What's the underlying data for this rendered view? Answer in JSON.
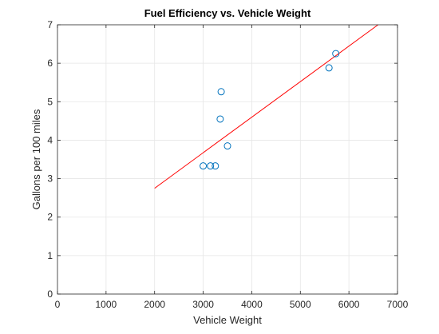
{
  "chart_data": {
    "type": "scatter",
    "title": "Fuel Efficiency vs. Vehicle Weight",
    "xlabel": "Vehicle Weight",
    "ylabel": "Gallons per 100 miles",
    "xlim": [
      0,
      7000
    ],
    "ylim": [
      0,
      7
    ],
    "grid": true,
    "x_ticks": [
      0,
      1000,
      2000,
      3000,
      4000,
      5000,
      6000,
      7000
    ],
    "x_tick_labels": [
      "0",
      "1000",
      "2000",
      "3000",
      "4000",
      "5000",
      "6000",
      "7000"
    ],
    "y_ticks": [
      0,
      1,
      2,
      3,
      4,
      5,
      6,
      7
    ],
    "y_tick_labels": [
      "0",
      "1",
      "2",
      "3",
      "4",
      "5",
      "6",
      "7"
    ],
    "series": [
      {
        "type": "scatter",
        "marker": "circle",
        "color": "#0072bd",
        "points": [
          {
            "x": 3000,
            "y": 3.33
          },
          {
            "x": 3150,
            "y": 3.33
          },
          {
            "x": 3250,
            "y": 3.33
          },
          {
            "x": 3350,
            "y": 4.55
          },
          {
            "x": 3370,
            "y": 5.26
          },
          {
            "x": 3500,
            "y": 3.85
          },
          {
            "x": 5590,
            "y": 5.88
          },
          {
            "x": 5730,
            "y": 6.25
          }
        ]
      },
      {
        "type": "line",
        "color": "#ff0000",
        "points": [
          {
            "x": 2000,
            "y": 2.75
          },
          {
            "x": 6600,
            "y": 7.0
          }
        ]
      }
    ]
  }
}
